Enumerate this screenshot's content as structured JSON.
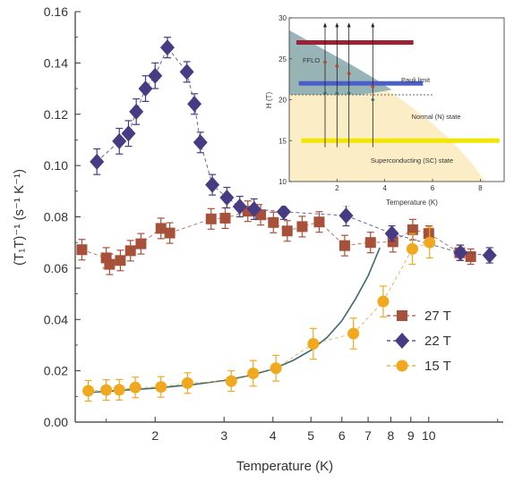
{
  "chart_data": {
    "type": "scatter",
    "xlabel": "Temperature (K)",
    "ylabel": "(T₁T)⁻¹ (s⁻¹ K⁻¹)",
    "x_scale": "log",
    "xlim": [
      1.25,
      15.5
    ],
    "ylim": [
      0,
      0.16
    ],
    "x_ticks": [
      2,
      3,
      4,
      5,
      6,
      7,
      8,
      9,
      10
    ],
    "y_ticks": [
      "0.00",
      "0.02",
      "0.04",
      "0.06",
      "0.08",
      "0.10",
      "0.12",
      "0.14",
      "0.16"
    ],
    "legend": {
      "placement": "right-middle"
    },
    "series": [
      {
        "name": "27 T",
        "marker": "square",
        "color": "#a8513a",
        "line_color": "#9a5a4a",
        "x": [
          1.3,
          1.5,
          1.53,
          1.63,
          1.73,
          1.84,
          2.07,
          2.18,
          2.78,
          3.02,
          3.45,
          3.72,
          4.01,
          4.35,
          4.75,
          5.25,
          6.1,
          7.1,
          8.1,
          9.1,
          10.0,
          12.0,
          12.8
        ],
        "y": [
          0.0672,
          0.064,
          0.0615,
          0.063,
          0.0668,
          0.0695,
          0.0755,
          0.0737,
          0.0792,
          0.0795,
          0.0822,
          0.0808,
          0.0778,
          0.0745,
          0.0762,
          0.078,
          0.0688,
          0.07,
          0.0703,
          0.075,
          0.0735,
          0.066,
          0.0645
        ],
        "err": [
          0.004,
          0.004,
          0.004,
          0.004,
          0.004,
          0.004,
          0.004,
          0.004,
          0.004,
          0.004,
          0.004,
          0.004,
          0.004,
          0.004,
          0.004,
          0.004,
          0.004,
          0.004,
          0.004,
          0.004,
          0.003,
          0.003,
          0.003
        ]
      },
      {
        "name": "22 T",
        "marker": "diamond",
        "color": "#473c84",
        "line_color": "#473c84",
        "x": [
          1.42,
          1.62,
          1.71,
          1.79,
          1.89,
          2.0,
          2.15,
          2.41,
          2.52,
          2.61,
          2.8,
          3.05,
          3.29,
          3.58,
          4.26,
          6.15,
          8.05,
          12.05,
          14.3
        ],
        "y": [
          0.1015,
          0.1095,
          0.1125,
          0.121,
          0.13,
          0.135,
          0.146,
          0.1365,
          0.124,
          0.109,
          0.0925,
          0.0875,
          0.084,
          0.083,
          0.082,
          0.0805,
          0.0735,
          0.066,
          0.065
        ],
        "err": [
          0.005,
          0.005,
          0.005,
          0.005,
          0.005,
          0.005,
          0.004,
          0.004,
          0.004,
          0.004,
          0.004,
          0.004,
          0.004,
          0.004,
          0.003,
          0.004,
          0.003,
          0.003,
          0.003
        ]
      },
      {
        "name": "15 T",
        "marker": "circle",
        "color": "#f0a81f",
        "line_color": "#d4a84a",
        "x": [
          1.35,
          1.5,
          1.62,
          1.78,
          2.07,
          2.42,
          3.13,
          3.56,
          4.07,
          5.07,
          6.42,
          7.65,
          9.08,
          10.05
        ],
        "y": [
          0.0122,
          0.0125,
          0.0126,
          0.0135,
          0.0137,
          0.0152,
          0.016,
          0.019,
          0.021,
          0.0305,
          0.0345,
          0.047,
          0.0675,
          0.07
        ],
        "err": [
          0.004,
          0.004,
          0.004,
          0.004,
          0.004,
          0.004,
          0.004,
          0.005,
          0.005,
          0.006,
          0.006,
          0.006,
          0.006,
          0.006
        ]
      }
    ],
    "fit_curve": {
      "color": "#3d6b6b",
      "x": [
        1.35,
        1.7,
        2.0,
        2.5,
        3.0,
        3.5,
        4.0,
        4.5,
        5.0,
        5.5,
        6.0,
        6.5,
        7.0,
        7.5
      ],
      "y": [
        0.0115,
        0.0125,
        0.0132,
        0.0146,
        0.0162,
        0.0182,
        0.0207,
        0.024,
        0.028,
        0.033,
        0.0395,
        0.048,
        0.057,
        0.068
      ]
    }
  },
  "inset": {
    "xlabel": "Temperature (K)",
    "ylabel": "H (T)",
    "xlim": [
      0,
      9
    ],
    "ylim": [
      10,
      30
    ],
    "x_ticks": [
      2,
      4,
      6,
      8
    ],
    "y_ticks": [
      10,
      15,
      20,
      25,
      30
    ],
    "labels": {
      "fflo": "FFLO",
      "pauli": "Pauli limit",
      "normal": "Normal (N) state",
      "sc": "Superconducting (SC) state"
    },
    "field_lines": [
      {
        "field": 27,
        "color": "#9b2335"
      },
      {
        "field": 22,
        "color": "#4a5fc8"
      },
      {
        "field": 15,
        "color": "#f2e600"
      }
    ],
    "arrows_x": [
      1.5,
      2.0,
      2.5,
      3.5
    ],
    "colors": {
      "sc_fill": "#fbeec7",
      "fflo_fill": "#86a8b0",
      "pauli_line": "#333333"
    }
  }
}
